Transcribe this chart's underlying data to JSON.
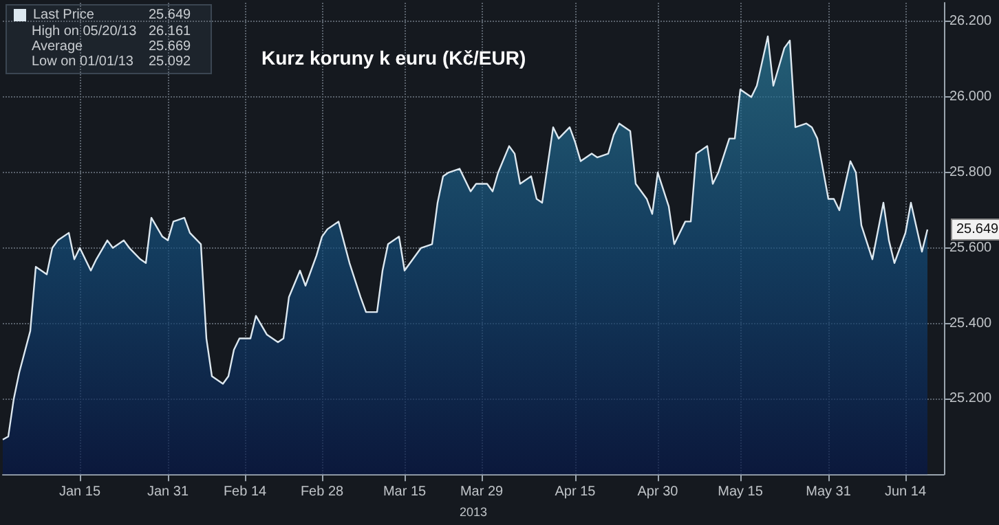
{
  "chart_data": {
    "type": "area",
    "title": "Kurz koruny k euru (Kč/EUR)",
    "xlabel": "2013",
    "x": [
      "2013-01-01",
      "2013-01-02",
      "2013-01-03",
      "2013-01-04",
      "2013-01-06",
      "2013-01-07",
      "2013-01-09",
      "2013-01-10",
      "2013-01-11",
      "2013-01-13",
      "2013-01-14",
      "2013-01-15",
      "2013-01-17",
      "2013-01-18",
      "2013-01-20",
      "2013-01-21",
      "2013-01-23",
      "2013-01-24",
      "2013-01-26",
      "2013-01-27",
      "2013-01-28",
      "2013-01-30",
      "2013-01-31",
      "2013-02-01",
      "2013-02-03",
      "2013-02-04",
      "2013-02-06",
      "2013-02-07",
      "2013-02-08",
      "2013-02-10",
      "2013-02-11",
      "2013-02-12",
      "2013-02-13",
      "2013-02-15",
      "2013-02-16",
      "2013-02-18",
      "2013-02-20",
      "2013-02-21",
      "2013-02-22",
      "2013-02-24",
      "2013-02-25",
      "2013-02-27",
      "2013-02-28",
      "2013-03-01",
      "2013-03-03",
      "2013-03-05",
      "2013-03-07",
      "2013-03-08",
      "2013-03-10",
      "2013-03-11",
      "2013-03-12",
      "2013-03-14",
      "2013-03-15",
      "2013-03-17",
      "2013-03-18",
      "2013-03-20",
      "2013-03-21",
      "2013-03-22",
      "2013-03-23",
      "2013-03-25",
      "2013-03-27",
      "2013-03-28",
      "2013-03-30",
      "2013-03-31",
      "2013-04-01",
      "2013-04-03",
      "2013-04-04",
      "2013-04-05",
      "2013-04-07",
      "2013-04-08",
      "2013-04-09",
      "2013-04-11",
      "2013-04-12",
      "2013-04-14",
      "2013-04-15",
      "2013-04-16",
      "2013-04-18",
      "2013-04-19",
      "2013-04-21",
      "2013-04-22",
      "2013-04-23",
      "2013-04-25",
      "2013-04-26",
      "2013-04-28",
      "2013-04-29",
      "2013-04-30",
      "2013-05-02",
      "2013-05-03",
      "2013-05-05",
      "2013-05-06",
      "2013-05-07",
      "2013-05-09",
      "2013-05-10",
      "2013-05-11",
      "2013-05-13",
      "2013-05-14",
      "2013-05-15",
      "2013-05-17",
      "2013-05-18",
      "2013-05-20",
      "2013-05-21",
      "2013-05-23",
      "2013-05-24",
      "2013-05-25",
      "2013-05-27",
      "2013-05-28",
      "2013-05-29",
      "2013-05-31",
      "2013-06-01",
      "2013-06-02",
      "2013-06-04",
      "2013-06-05",
      "2013-06-06",
      "2013-06-08",
      "2013-06-10",
      "2013-06-11",
      "2013-06-12",
      "2013-06-14",
      "2013-06-15",
      "2013-06-17",
      "2013-06-18"
    ],
    "series": [
      {
        "name": "Last Price",
        "color": "#dde8f0",
        "values": [
          25.092,
          25.1,
          25.2,
          25.27,
          25.38,
          25.55,
          25.53,
          25.6,
          25.62,
          25.64,
          25.57,
          25.6,
          25.54,
          25.57,
          25.62,
          25.6,
          25.62,
          25.6,
          25.57,
          25.56,
          25.68,
          25.63,
          25.62,
          25.67,
          25.68,
          25.64,
          25.61,
          25.36,
          25.26,
          25.24,
          25.26,
          25.33,
          25.36,
          25.36,
          25.42,
          25.37,
          25.35,
          25.36,
          25.47,
          25.54,
          25.5,
          25.58,
          25.63,
          25.65,
          25.67,
          25.56,
          25.47,
          25.43,
          25.43,
          25.54,
          25.61,
          25.63,
          25.54,
          25.58,
          25.6,
          25.61,
          25.72,
          25.79,
          25.8,
          25.81,
          25.75,
          25.77,
          25.77,
          25.75,
          25.8,
          25.87,
          25.85,
          25.77,
          25.79,
          25.73,
          25.72,
          25.92,
          25.89,
          25.92,
          25.88,
          25.83,
          25.85,
          25.84,
          25.85,
          25.9,
          25.93,
          25.91,
          25.77,
          25.73,
          25.69,
          25.8,
          25.71,
          25.61,
          25.67,
          25.67,
          25.85,
          25.87,
          25.77,
          25.8,
          25.89,
          25.89,
          26.02,
          26.0,
          26.03,
          26.161,
          26.03,
          26.13,
          26.15,
          25.92,
          25.93,
          25.92,
          25.89,
          25.73,
          25.73,
          25.7,
          25.83,
          25.8,
          25.66,
          25.57,
          25.72,
          25.62,
          25.56,
          25.64,
          25.72,
          25.59,
          25.649
        ]
      }
    ],
    "xlim": [
      "2013-01-01",
      "2013-06-21"
    ],
    "xticks": [
      {
        "value": "2013-01-15",
        "label": "Jan 15"
      },
      {
        "value": "2013-01-31",
        "label": "Jan 31"
      },
      {
        "value": "2013-02-14",
        "label": "Feb 14"
      },
      {
        "value": "2013-02-28",
        "label": "Feb 28"
      },
      {
        "value": "2013-03-15",
        "label": "Mar 15"
      },
      {
        "value": "2013-03-29",
        "label": "Mar 29"
      },
      {
        "value": "2013-04-15",
        "label": "Apr 15"
      },
      {
        "value": "2013-04-30",
        "label": "Apr 30"
      },
      {
        "value": "2013-05-15",
        "label": "May 15"
      },
      {
        "value": "2013-05-31",
        "label": "May 31"
      },
      {
        "value": "2013-06-14",
        "label": "Jun 14"
      }
    ],
    "ylim": [
      25.0,
      26.25
    ],
    "yticks": [
      {
        "value": 25.2,
        "label": "25.200"
      },
      {
        "value": 25.4,
        "label": "25.400"
      },
      {
        "value": 25.6,
        "label": "25.600"
      },
      {
        "value": 25.8,
        "label": "25.800"
      },
      {
        "value": 26.0,
        "label": "26.000"
      },
      {
        "value": 26.2,
        "label": "26.200"
      }
    ],
    "annotations": [
      "25.649",
      "High on 05/20/13",
      "26.161",
      "Average",
      "25.669",
      "Low on 01/01/13",
      "25.092",
      {
        "text": "25.649",
        "x": "2013-06-18",
        "y": 25.649
      }
    ],
    "grid": true,
    "legend": "top left",
    "marker": "none",
    "line_style": "solid"
  }
}
